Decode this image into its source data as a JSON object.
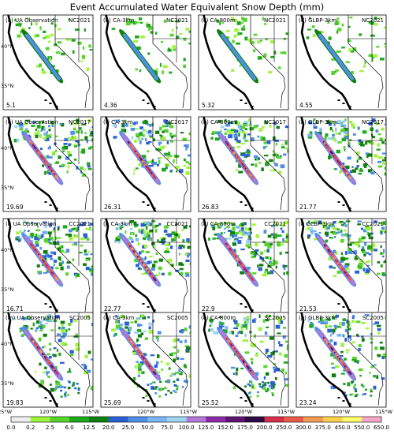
{
  "figure": {
    "title": "Event Accumulated Water Equivalent Snow Depth (mm)",
    "lat_labels": [
      "40°N",
      "35°N"
    ],
    "lon_labels": [
      "125°W",
      "120°W",
      "115°W"
    ],
    "columns": [
      "UA Observation",
      "CA-3km",
      "CA-800m",
      "GLBP-3km"
    ]
  },
  "panels": [
    {
      "tag": "(a)",
      "model": "UA Observation",
      "event": "NC2021",
      "value": "5.1"
    },
    {
      "tag": "(b)",
      "model": "CA-3km",
      "event": "NC2021",
      "value": "4.36"
    },
    {
      "tag": "(c)",
      "model": "CA-800m",
      "event": "NC2021",
      "value": "5.32"
    },
    {
      "tag": "(d)",
      "model": "GLBP-3km",
      "event": "NC2021",
      "value": "4.55"
    },
    {
      "tag": "(e)",
      "model": "UA Observation",
      "event": "NC2017",
      "value": "19.69"
    },
    {
      "tag": "(f)",
      "model": "CA-3km",
      "event": "NC2017",
      "value": "26.31"
    },
    {
      "tag": "(g)",
      "model": "CA-800m",
      "event": "NC2017",
      "value": "26.83"
    },
    {
      "tag": "(h)",
      "model": "GLBP-3km",
      "event": "NC2017",
      "value": "21.77"
    },
    {
      "tag": "(i)",
      "model": "UA Observation",
      "event": "CC2021",
      "value": "16.71"
    },
    {
      "tag": "(j)",
      "model": "CA-3km",
      "event": "CC2021",
      "value": "22.77"
    },
    {
      "tag": "(k)",
      "model": "CA-800m",
      "event": "CC2021",
      "value": "22.9"
    },
    {
      "tag": "(l)",
      "model": "GLBP-3km",
      "event": "CC2021",
      "value": "21.53"
    },
    {
      "tag": "(m)",
      "model": "UA Observation",
      "event": "SC2005",
      "value": "19.83"
    },
    {
      "tag": "(n)",
      "model": "CA-3km",
      "event": "SC2005",
      "value": "25.69"
    },
    {
      "tag": "(o)",
      "model": "CA-800m",
      "event": "SC2005",
      "value": "25.52"
    },
    {
      "tag": "(p)",
      "model": "GLBP-3km",
      "event": "SC2005",
      "value": "23.24"
    }
  ],
  "colorbar": {
    "levels": [
      "0.0",
      "0.2",
      "2.5",
      "6.0",
      "12.5",
      "20.0",
      "25.0",
      "50.0",
      "75.0",
      "100.0",
      "125.0",
      "152.0",
      "175.0",
      "200.0",
      "250.0",
      "300.0",
      "375.0",
      "450.0",
      "550.0",
      "650.0"
    ],
    "colors": [
      "#eeeeee",
      "#9ef53c",
      "#55d52b",
      "#1ea81e",
      "#0f7f0f",
      "#2b5fd6",
      "#4f8fe8",
      "#79b6f4",
      "#9fd4f7",
      "#b279d8",
      "#8a2aa8",
      "#5e1472",
      "#2e0a45",
      "#d6304a",
      "#ec5a4a",
      "#f49a52",
      "#fcd24d",
      "#fffa6a",
      "#f7a8c9"
    ]
  },
  "map_style": {
    "land": "#ffffff",
    "coast": "#000000",
    "border": "#000000"
  }
}
